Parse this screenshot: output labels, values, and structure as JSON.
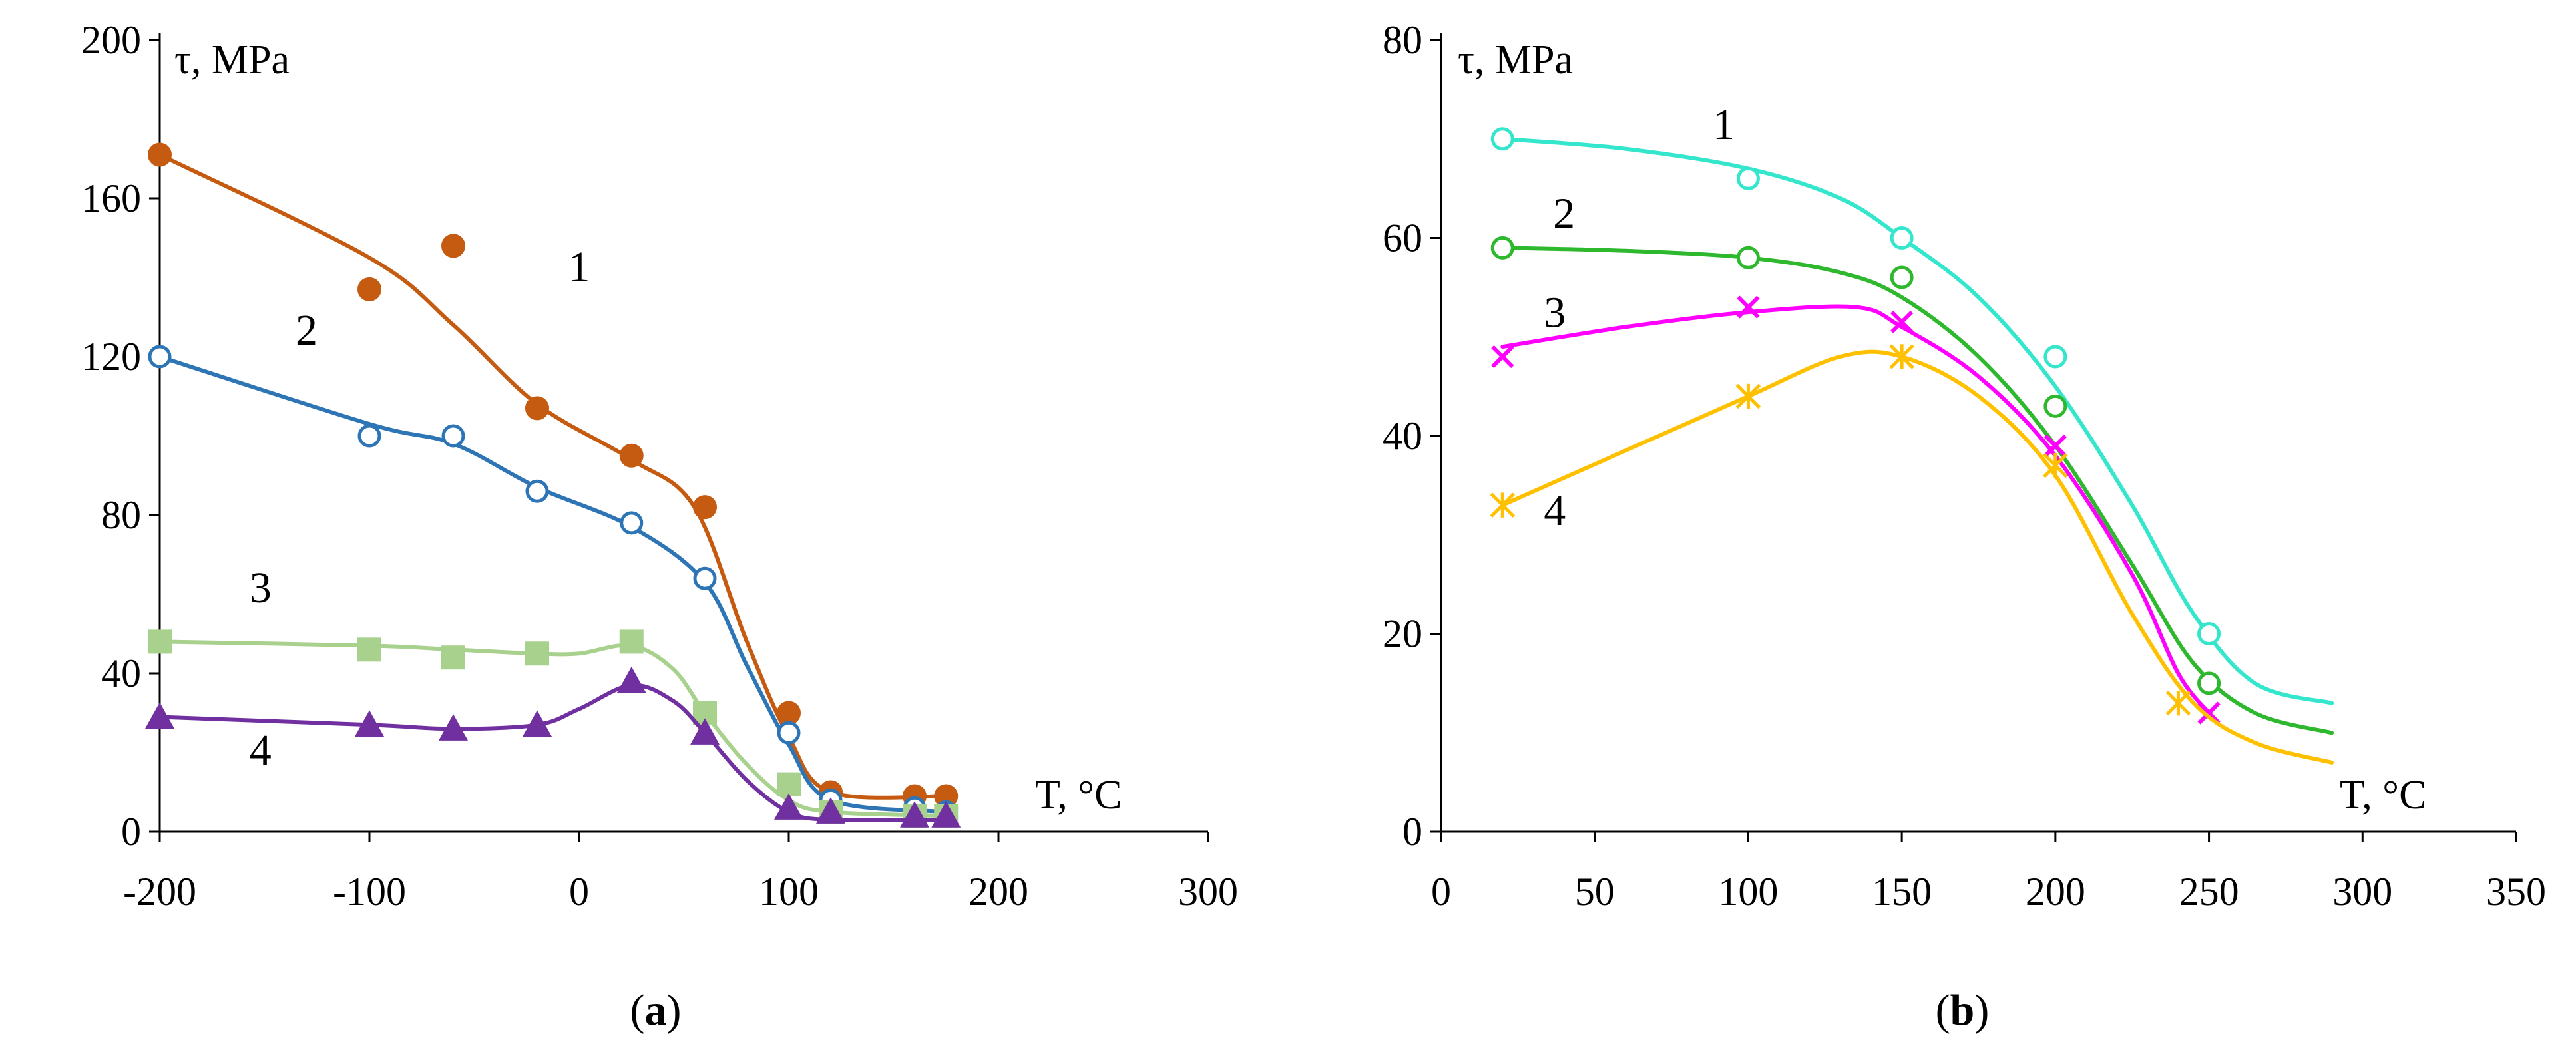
{
  "chart_data": [
    {
      "id": "a",
      "type": "scatter",
      "panel_label_open": "(",
      "panel_label_letter": "a",
      "panel_label_close": ")",
      "ylabel": "τ, MPa",
      "xlabel": "T, °C",
      "xlim": [
        -200,
        300
      ],
      "ylim": [
        0,
        200
      ],
      "xticks": [
        -200,
        -100,
        0,
        100,
        200,
        300
      ],
      "yticks": [
        0,
        40,
        80,
        120,
        160,
        200
      ],
      "series": [
        {
          "name": "1",
          "color": "#c55a11",
          "marker": "filled-circle",
          "points": [
            [
              -200,
              171
            ],
            [
              -100,
              137
            ],
            [
              -60,
              148
            ],
            [
              -20,
              107
            ],
            [
              25,
              95
            ],
            [
              60,
              82
            ],
            [
              100,
              30
            ],
            [
              120,
              10
            ],
            [
              160,
              9
            ],
            [
              175,
              9
            ]
          ],
          "curve": [
            [
              -200,
              171
            ],
            [
              -100,
              145
            ],
            [
              -60,
              128
            ],
            [
              -20,
              108
            ],
            [
              25,
              94
            ],
            [
              55,
              82
            ],
            [
              80,
              48
            ],
            [
              100,
              24
            ],
            [
              120,
              10
            ],
            [
              175,
              9
            ]
          ]
        },
        {
          "name": "2",
          "color": "#2e75b6",
          "marker": "open-circle",
          "points": [
            [
              -200,
              120
            ],
            [
              -100,
              100
            ],
            [
              -60,
              100
            ],
            [
              -20,
              86
            ],
            [
              25,
              78
            ],
            [
              60,
              64
            ],
            [
              100,
              25
            ],
            [
              120,
              8
            ],
            [
              160,
              6
            ],
            [
              175,
              5
            ]
          ],
          "curve": [
            [
              -200,
              120
            ],
            [
              -100,
              103
            ],
            [
              -60,
              98
            ],
            [
              -20,
              87
            ],
            [
              25,
              77
            ],
            [
              60,
              63
            ],
            [
              80,
              42
            ],
            [
              100,
              22
            ],
            [
              120,
              8
            ],
            [
              175,
              5
            ]
          ]
        },
        {
          "name": "3",
          "color": "#a9d18e",
          "marker": "filled-square",
          "points": [
            [
              -200,
              48
            ],
            [
              -100,
              46
            ],
            [
              -60,
              44
            ],
            [
              -20,
              45
            ],
            [
              25,
              48
            ],
            [
              60,
              30
            ],
            [
              100,
              12
            ],
            [
              120,
              5
            ],
            [
              160,
              4
            ],
            [
              175,
              4
            ]
          ],
          "curve": [
            [
              -200,
              48
            ],
            [
              -100,
              47
            ],
            [
              -60,
              46
            ],
            [
              -20,
              45
            ],
            [
              0,
              45
            ],
            [
              25,
              47
            ],
            [
              45,
              41
            ],
            [
              60,
              30
            ],
            [
              80,
              17
            ],
            [
              100,
              8
            ],
            [
              120,
              5
            ],
            [
              175,
              4
            ]
          ]
        },
        {
          "name": "4",
          "color": "#7030a0",
          "marker": "filled-triangle",
          "points": [
            [
              -200,
              29
            ],
            [
              -100,
              27
            ],
            [
              -60,
              26
            ],
            [
              -20,
              27
            ],
            [
              25,
              38
            ],
            [
              60,
              25
            ],
            [
              100,
              6
            ],
            [
              120,
              5
            ],
            [
              160,
              4
            ],
            [
              175,
              4
            ]
          ],
          "curve": [
            [
              -200,
              29
            ],
            [
              -100,
              27
            ],
            [
              -60,
              26
            ],
            [
              -20,
              27
            ],
            [
              0,
              31
            ],
            [
              25,
              37
            ],
            [
              45,
              33
            ],
            [
              60,
              25
            ],
            [
              80,
              13
            ],
            [
              100,
              5
            ],
            [
              120,
              3
            ],
            [
              175,
              3
            ]
          ]
        }
      ],
      "annotations": [
        {
          "text": "1",
          "x": 0,
          "y": 139
        },
        {
          "text": "2",
          "x": -130,
          "y": 123
        },
        {
          "text": "3",
          "x": -152,
          "y": 58
        },
        {
          "text": "4",
          "x": -152,
          "y": 17
        }
      ]
    },
    {
      "id": "b",
      "type": "scatter",
      "panel_label_open": "(",
      "panel_label_letter": "b",
      "panel_label_close": ")",
      "ylabel": "τ, MPa",
      "xlabel": "T, °C",
      "xlim": [
        0,
        350
      ],
      "ylim": [
        0,
        80
      ],
      "xticks": [
        0,
        50,
        100,
        150,
        200,
        250,
        300,
        350
      ],
      "yticks": [
        0,
        20,
        40,
        60,
        80
      ],
      "series": [
        {
          "name": "1",
          "color": "#33e6cc",
          "marker": "open-circle",
          "points": [
            [
              20,
              70
            ],
            [
              100,
              66
            ],
            [
              150,
              60
            ],
            [
              200,
              48
            ],
            [
              250,
              20
            ]
          ],
          "curve": [
            [
              20,
              70
            ],
            [
              60,
              69
            ],
            [
              100,
              67
            ],
            [
              130,
              64
            ],
            [
              150,
              60
            ],
            [
              175,
              54
            ],
            [
              200,
              45
            ],
            [
              225,
              33
            ],
            [
              245,
              22
            ],
            [
              265,
              15
            ],
            [
              290,
              13
            ]
          ]
        },
        {
          "name": "2",
          "color": "#2db82d",
          "marker": "open-circle",
          "points": [
            [
              20,
              59
            ],
            [
              100,
              58
            ],
            [
              150,
              56
            ],
            [
              200,
              43
            ],
            [
              250,
              15
            ]
          ],
          "curve": [
            [
              20,
              59
            ],
            [
              60,
              58.7
            ],
            [
              100,
              58
            ],
            [
              130,
              56.5
            ],
            [
              150,
              54
            ],
            [
              175,
              48
            ],
            [
              200,
              39
            ],
            [
              225,
              27
            ],
            [
              245,
              17
            ],
            [
              265,
              12
            ],
            [
              290,
              10
            ]
          ]
        },
        {
          "name": "3",
          "color": "#ff00ff",
          "marker": "x",
          "points": [
            [
              20,
              48
            ],
            [
              100,
              53
            ],
            [
              150,
              51.5
            ],
            [
              200,
              39
            ],
            [
              250,
              12
            ]
          ],
          "curve": [
            [
              20,
              49
            ],
            [
              60,
              51
            ],
            [
              100,
              52.5
            ],
            [
              135,
              53
            ],
            [
              150,
              51
            ],
            [
              175,
              46
            ],
            [
              200,
              38
            ],
            [
              225,
              26
            ],
            [
              240,
              16
            ],
            [
              250,
              12
            ]
          ]
        },
        {
          "name": "4",
          "color": "#ffc000",
          "marker": "star",
          "points": [
            [
              20,
              33
            ],
            [
              100,
              44
            ],
            [
              150,
              48
            ],
            [
              200,
              37
            ],
            [
              240,
              13
            ]
          ],
          "curve": [
            [
              20,
              33
            ],
            [
              60,
              38.5
            ],
            [
              100,
              44
            ],
            [
              130,
              48
            ],
            [
              150,
              48
            ],
            [
              175,
              44
            ],
            [
              200,
              36
            ],
            [
              225,
              22
            ],
            [
              245,
              13
            ],
            [
              265,
              9
            ],
            [
              290,
              7
            ]
          ]
        }
      ],
      "annotations": [
        {
          "text": "1",
          "x": 92,
          "y": 70
        },
        {
          "text": "2",
          "x": 40,
          "y": 61
        },
        {
          "text": "3",
          "x": 37,
          "y": 51
        },
        {
          "text": "4",
          "x": 37,
          "y": 31
        }
      ]
    }
  ]
}
